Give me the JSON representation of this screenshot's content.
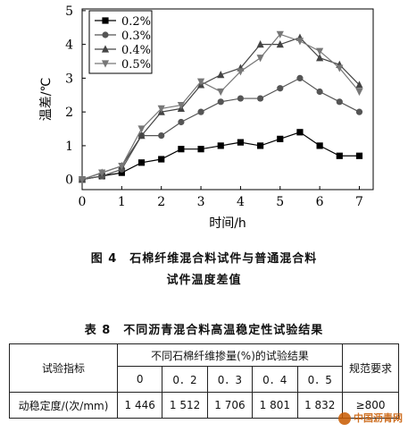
{
  "chart_data": {
    "type": "line",
    "ylabel": "温差/℃",
    "xlabel": "时间/h",
    "xlim": [
      0,
      7.35
    ],
    "ylim": [
      -0.3,
      5.05
    ],
    "xticks": [
      "0",
      "1",
      "2",
      "3",
      "4",
      "5",
      "6",
      "7"
    ],
    "yticks": [
      "0",
      "1",
      "2",
      "3",
      "4",
      "5"
    ],
    "legend": "top-left",
    "series": [
      {
        "name": "0.2%",
        "marker": "square",
        "color": "#000000",
        "x": [
          0,
          0.5,
          1,
          1.5,
          2,
          2.5,
          3,
          3.5,
          4,
          4.5,
          5,
          5.5,
          6,
          6.5,
          7
        ],
        "values": [
          0,
          0.1,
          0.2,
          0.5,
          0.6,
          0.9,
          0.9,
          1.0,
          1.1,
          1.0,
          1.2,
          1.4,
          1.0,
          0.7,
          0.7
        ]
      },
      {
        "name": "0.3%",
        "marker": "circle",
        "color": "#555555",
        "x": [
          0,
          0.5,
          1,
          1.5,
          2,
          2.5,
          3,
          3.5,
          4,
          4.5,
          5,
          5.5,
          6,
          6.5,
          7
        ],
        "values": [
          0,
          0.1,
          0.3,
          1.3,
          1.3,
          1.7,
          2.0,
          2.3,
          2.4,
          2.4,
          2.7,
          3.0,
          2.6,
          2.3,
          2.0
        ]
      },
      {
        "name": "0.4%",
        "marker": "triangle-up",
        "color": "#444444",
        "x": [
          0,
          0.5,
          1,
          1.5,
          2,
          2.5,
          3,
          3.5,
          4,
          4.5,
          5,
          5.5,
          6,
          6.5,
          7
        ],
        "values": [
          0,
          0.2,
          0.4,
          1.3,
          2.0,
          2.1,
          2.8,
          3.1,
          3.3,
          4.0,
          4.0,
          4.2,
          3.6,
          3.4,
          2.8
        ]
      },
      {
        "name": "0.5%",
        "marker": "triangle-down",
        "color": "#777777",
        "x": [
          0,
          0.5,
          1,
          1.5,
          2,
          2.5,
          3,
          3.5,
          4,
          4.5,
          5,
          5.5,
          6,
          6.5,
          7
        ],
        "values": [
          0,
          0.2,
          0.4,
          1.5,
          2.1,
          2.2,
          2.9,
          2.6,
          3.2,
          3.6,
          4.3,
          4.1,
          3.8,
          3.3,
          2.6
        ]
      }
    ]
  },
  "figure": {
    "caption_line1": "图 4　石棉纤维混合料试件与普通混合料",
    "caption_line2": "试件温度差值"
  },
  "table": {
    "title": "表 8　不同沥青混合料高温稳定性试验结果",
    "col_indicator": "试验指标",
    "col_group": "不同石棉纤维掺量(%)的试验结果",
    "col_spec": "规范要求",
    "dosages": [
      "0",
      "0．2",
      "0．3",
      "0．4",
      "0．5"
    ],
    "row_label": "动稳定度/(次/mm)",
    "row_values": [
      "1 446",
      "1 512",
      "1 706",
      "1 801",
      "1 832"
    ],
    "row_spec": "≥800"
  },
  "watermark": {
    "text": "中国沥青网"
  }
}
